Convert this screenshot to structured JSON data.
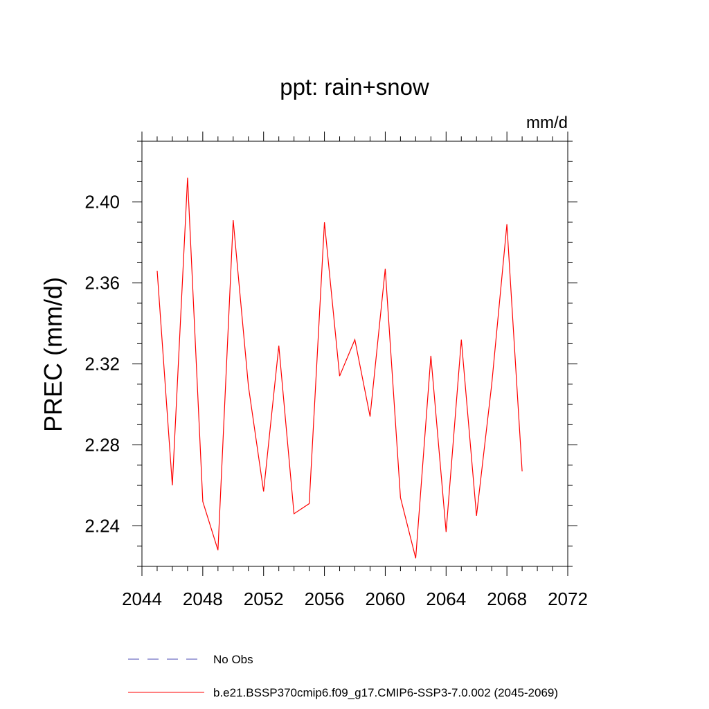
{
  "chart_data": {
    "type": "line",
    "title": "ppt: rain+snow",
    "units": "mm/d",
    "ylabel": "PREC  (mm/d)",
    "xlabel": "",
    "xlim": [
      2044,
      2072
    ],
    "ylim": [
      2.22,
      2.43
    ],
    "xticks": [
      2044,
      2048,
      2052,
      2056,
      2060,
      2064,
      2068,
      2072
    ],
    "xtick_labels": [
      "2044",
      "2048",
      "2052",
      "2056",
      "2060",
      "2064",
      "2068",
      "2072"
    ],
    "yticks": [
      2.24,
      2.28,
      2.32,
      2.36,
      2.4
    ],
    "ytick_labels": [
      "2.24",
      "2.28",
      "2.32",
      "2.36",
      "2.40"
    ],
    "grid": false,
    "legend_position": "bottom",
    "series": [
      {
        "name": "b.e21.BSSP370cmip6.f09_g17.CMIP6-SSP3-7.0.002 (2045-2069)",
        "color": "#ff0000",
        "style": "solid",
        "x": [
          2045,
          2046,
          2047,
          2048,
          2049,
          2050,
          2051,
          2052,
          2053,
          2054,
          2055,
          2056,
          2057,
          2058,
          2059,
          2060,
          2061,
          2062,
          2063,
          2064,
          2065,
          2066,
          2067,
          2068,
          2069
        ],
        "values": [
          2.366,
          2.26,
          2.412,
          2.252,
          2.228,
          2.391,
          2.309,
          2.257,
          2.329,
          2.246,
          2.251,
          2.39,
          2.314,
          2.332,
          2.294,
          2.367,
          2.254,
          2.224,
          2.324,
          2.237,
          2.332,
          2.245,
          2.31,
          2.389,
          2.267
        ]
      }
    ],
    "legend": [
      {
        "label": "No Obs",
        "color": "#4b4bb4",
        "style": "dashed"
      },
      {
        "label": "b.e21.BSSP370cmip6.f09_g17.CMIP6-SSP3-7.0.002 (2045-2069)",
        "color": "#ff0000",
        "style": "solid"
      }
    ]
  }
}
